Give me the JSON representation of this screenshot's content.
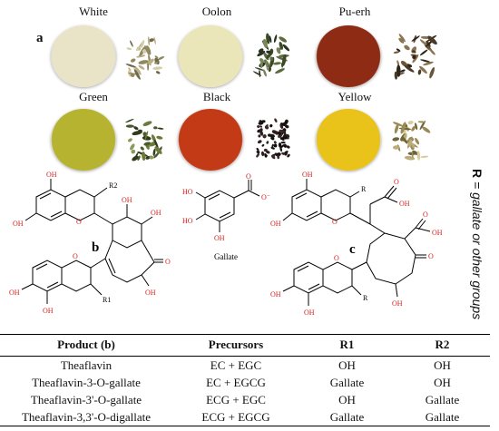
{
  "panel_a": {
    "letter": "a",
    "teas": [
      {
        "name": "White",
        "liquor": "#e9e4c8"
      },
      {
        "name": "Oolon",
        "liquor": "#eae6b9"
      },
      {
        "name": "Pu-erh",
        "liquor": "#8e2b14"
      },
      {
        "name": "Green",
        "liquor": "#b6b330"
      },
      {
        "name": "Black",
        "liquor": "#c23a16"
      },
      {
        "name": "Yellow",
        "liquor": "#e9c21a"
      }
    ]
  },
  "panel_b": {
    "letter": "b",
    "r_labels": [
      "R2",
      "R1"
    ],
    "oh_label": "OH",
    "o_label": "O"
  },
  "gallate": {
    "label": "Gallate",
    "anion": "O⁻"
  },
  "panel_c": {
    "letter": "c",
    "r_label": "R",
    "oh_label": "OH",
    "o_label": "O"
  },
  "side_note": {
    "r": "R",
    "rest": "= gallate or other groups"
  },
  "table": {
    "headers": [
      "Product (b)",
      "Precursors",
      "R1",
      "R2"
    ],
    "rows": [
      [
        "Theaflavin",
        "EC + EGC",
        "OH",
        "OH"
      ],
      [
        "Theaflavin-3-O-gallate",
        "EC + EGCG",
        "Gallate",
        "OH"
      ],
      [
        "Theaflavin-3'-O-gallate",
        "ECG + EGC",
        "OH",
        "Gallate"
      ],
      [
        "Theaflavin-3,3'-O-digallate",
        "ECG + EGCG",
        "Gallate",
        "Gallate"
      ]
    ]
  }
}
